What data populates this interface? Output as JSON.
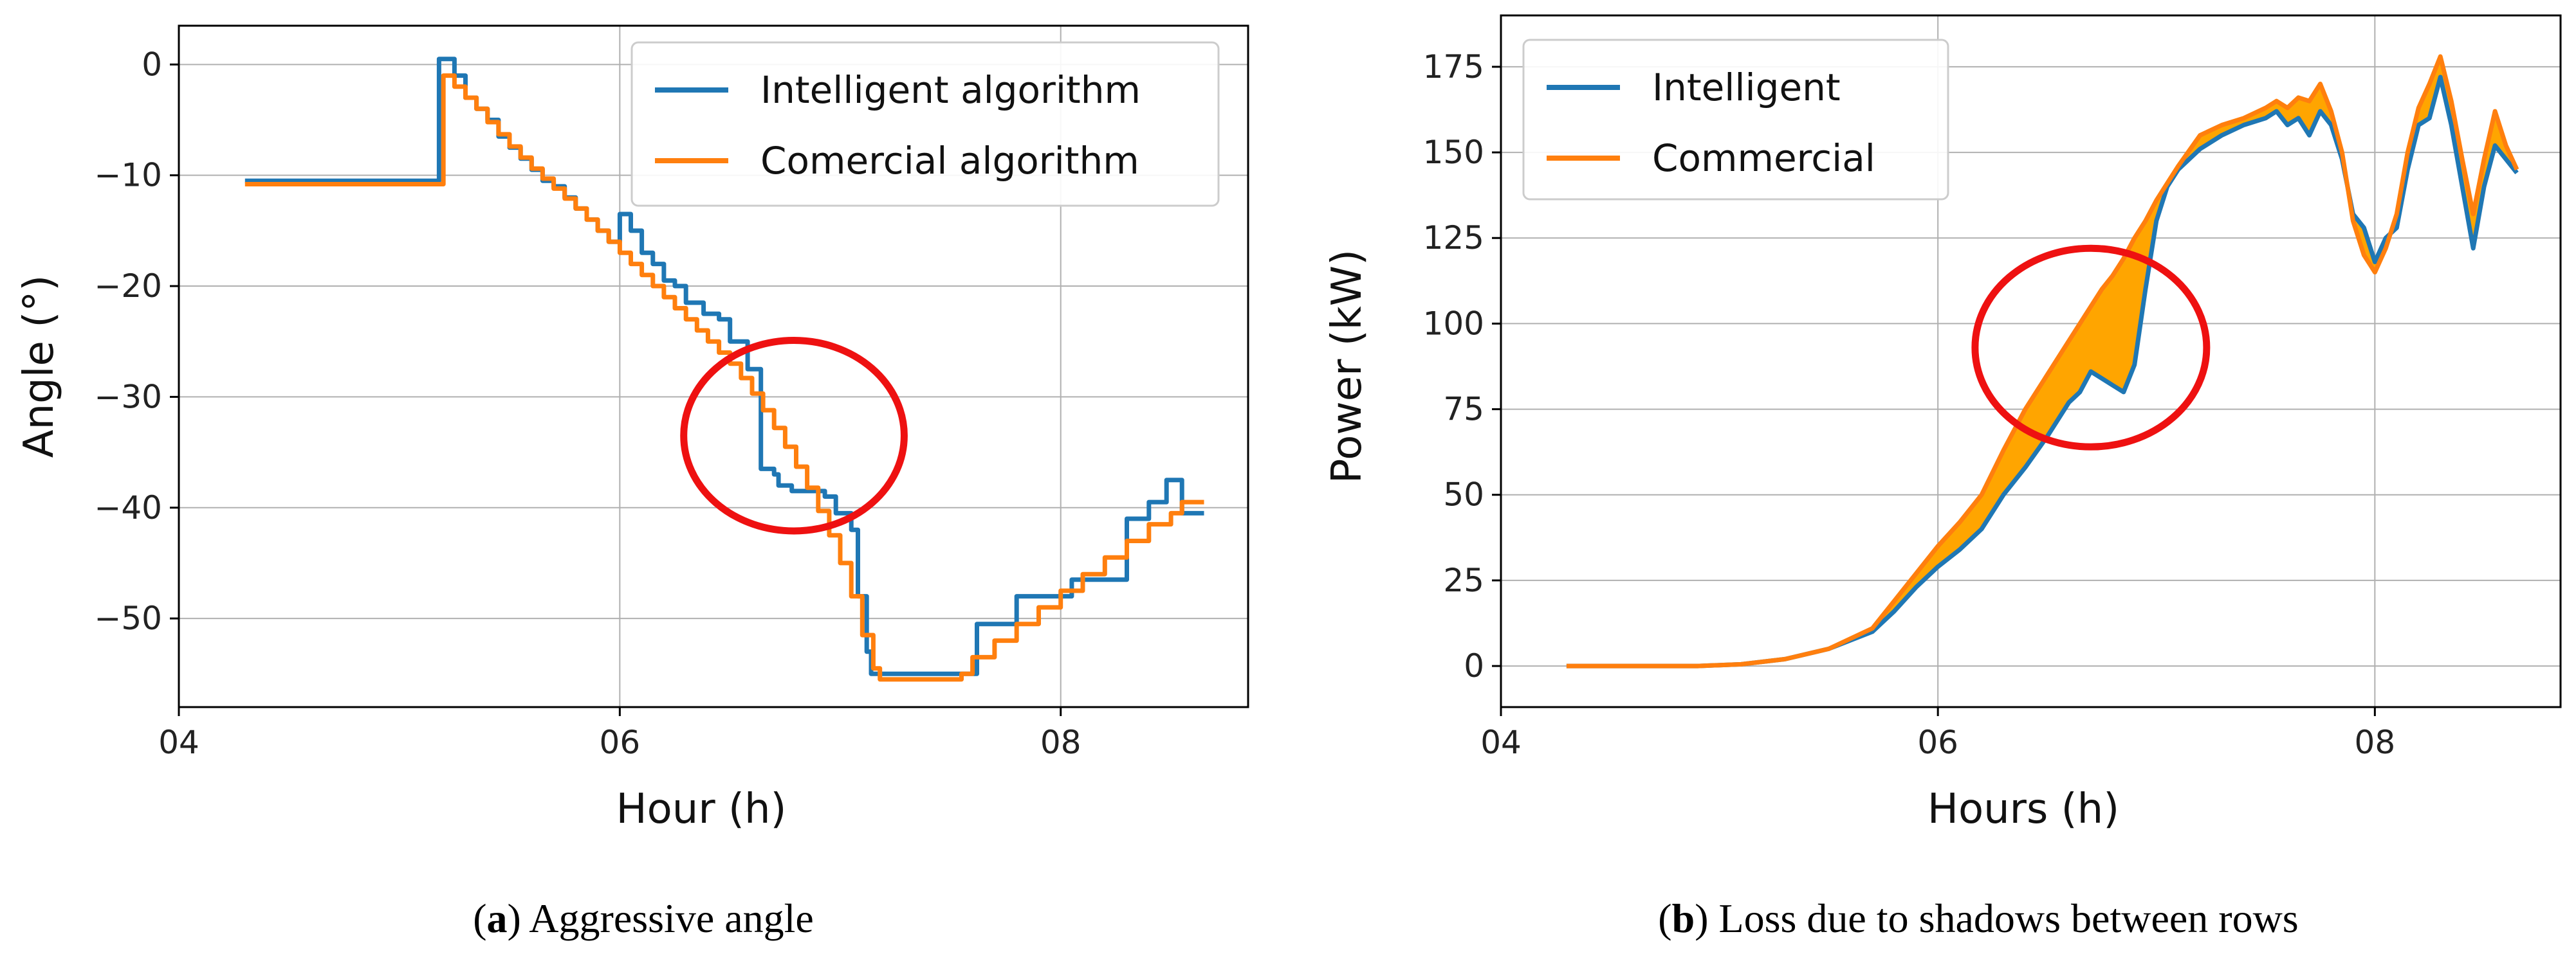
{
  "chart_data": [
    {
      "type": "line",
      "panel_letter": "a",
      "caption": "Aggressive angle",
      "xlabel": "Hour (h)",
      "ylabel": "Angle (°)",
      "xlim": [
        4.0,
        8.85
      ],
      "ylim": [
        -58,
        3.5
      ],
      "xticks": [
        4,
        6,
        8
      ],
      "xtick_labels": [
        "04",
        "06",
        "08"
      ],
      "yticks": [
        0,
        -10,
        -20,
        -30,
        -40,
        -50
      ],
      "ytick_labels": [
        "0",
        "−10",
        "−20",
        "−30",
        "−40",
        "−50"
      ],
      "grid": true,
      "legend_position": "top-right",
      "series": [
        {
          "name": "Intelligent algorithm",
          "color": "#1f77b4",
          "step": true,
          "x": [
            4.3,
            5.18,
            5.18,
            5.25,
            5.3,
            5.35,
            5.4,
            5.45,
            5.5,
            5.55,
            5.6,
            5.65,
            5.7,
            5.75,
            5.8,
            5.85,
            5.9,
            5.95,
            6.0,
            6.05,
            6.1,
            6.15,
            6.2,
            6.25,
            6.3,
            6.38,
            6.45,
            6.5,
            6.58,
            6.64,
            6.7,
            6.72,
            6.78,
            6.93,
            6.98,
            7.05,
            7.08,
            7.12,
            7.14,
            7.18,
            7.55,
            7.62,
            7.75,
            7.8,
            7.88,
            7.95,
            8.05,
            8.2,
            8.3,
            8.35,
            8.4,
            8.48,
            8.55,
            8.65
          ],
          "y": [
            -10.5,
            -10.5,
            0.5,
            -1,
            -3,
            -4,
            -5,
            -6.5,
            -7.5,
            -8.5,
            -9.5,
            -10.5,
            -11,
            -12,
            -13,
            -14,
            -15,
            -16,
            -13.5,
            -15,
            -17,
            -18,
            -19.5,
            -20,
            -21.5,
            -22.5,
            -23,
            -25,
            -27.5,
            -36.5,
            -37,
            -38,
            -38.5,
            -39,
            -40.5,
            -42,
            -48,
            -53,
            -55,
            -55,
            -55,
            -50.5,
            -50.5,
            -48,
            -48,
            -48,
            -46.5,
            -46.5,
            -41,
            -41,
            -39.5,
            -37.5,
            -40.5,
            -40.5
          ]
        },
        {
          "name": "Comercial algorithm",
          "color": "#ff7f0e",
          "step": true,
          "x": [
            4.3,
            5.18,
            5.2,
            5.25,
            5.3,
            5.35,
            5.4,
            5.45,
            5.5,
            5.55,
            5.6,
            5.65,
            5.7,
            5.75,
            5.8,
            5.85,
            5.9,
            5.95,
            6.0,
            6.05,
            6.1,
            6.15,
            6.2,
            6.25,
            6.3,
            6.35,
            6.4,
            6.45,
            6.5,
            6.55,
            6.6,
            6.65,
            6.7,
            6.75,
            6.8,
            6.85,
            6.9,
            6.95,
            7.0,
            7.05,
            7.1,
            7.15,
            7.18,
            7.55,
            7.6,
            7.7,
            7.8,
            7.9,
            8.0,
            8.1,
            8.2,
            8.3,
            8.4,
            8.5,
            8.55,
            8.65
          ],
          "y": [
            -10.8,
            -10.8,
            -1,
            -2,
            -3,
            -4,
            -5.2,
            -6.3,
            -7.4,
            -8.4,
            -9.4,
            -10.3,
            -11.2,
            -12.1,
            -13,
            -14,
            -15,
            -16,
            -17,
            -18,
            -19,
            -20,
            -21,
            -22,
            -23,
            -24,
            -25,
            -26,
            -27,
            -28.3,
            -29.7,
            -31.2,
            -32.8,
            -34.5,
            -36.3,
            -38.2,
            -40.3,
            -42.5,
            -45,
            -48,
            -51.5,
            -54.5,
            -55.5,
            -55,
            -53.5,
            -52,
            -50.5,
            -49,
            -47.5,
            -46,
            -44.5,
            -43,
            -41.5,
            -40.5,
            -39.5,
            -39.5
          ]
        }
      ],
      "annotations": [
        {
          "shape": "ellipse",
          "color": "#ee1111",
          "cx": 6.79,
          "cy": -33.5,
          "rx": 0.5,
          "ry": 8.6
        }
      ]
    },
    {
      "type": "line",
      "panel_letter": "b",
      "caption": "Loss due to shadows between rows",
      "xlabel": "Hours (h)",
      "ylabel": "Power (kW)",
      "xlim": [
        4.0,
        8.85
      ],
      "ylim": [
        -12,
        190
      ],
      "xticks": [
        4,
        6,
        8
      ],
      "xtick_labels": [
        "04",
        "06",
        "08"
      ],
      "yticks": [
        0,
        25,
        50,
        75,
        100,
        125,
        150,
        175
      ],
      "ytick_labels": [
        "0",
        "25",
        "50",
        "75",
        "100",
        "125",
        "150",
        "175"
      ],
      "grid": true,
      "legend_position": "top-left",
      "fill_between": {
        "color": "#ffa500",
        "series_upper": 1,
        "series_lower": 0
      },
      "series": [
        {
          "name": "Intelligent",
          "color": "#1f77b4",
          "x": [
            4.3,
            4.6,
            4.9,
            5.1,
            5.3,
            5.5,
            5.7,
            5.8,
            5.9,
            6.0,
            6.1,
            6.2,
            6.3,
            6.4,
            6.5,
            6.6,
            6.65,
            6.7,
            6.75,
            6.8,
            6.85,
            6.9,
            6.95,
            7.0,
            7.05,
            7.1,
            7.2,
            7.3,
            7.4,
            7.5,
            7.55,
            7.6,
            7.65,
            7.7,
            7.75,
            7.8,
            7.85,
            7.9,
            7.95,
            8.0,
            8.05,
            8.1,
            8.15,
            8.2,
            8.25,
            8.3,
            8.35,
            8.4,
            8.45,
            8.5,
            8.55,
            8.6,
            8.65
          ],
          "y": [
            0,
            0,
            0,
            0.5,
            2,
            5,
            10,
            16,
            23,
            29,
            34,
            40,
            50,
            58,
            67,
            77,
            80,
            86,
            84,
            82,
            80,
            88,
            110,
            130,
            140,
            145,
            151,
            155,
            158,
            160,
            162,
            158,
            160,
            155,
            162,
            158,
            148,
            132,
            128,
            118,
            125,
            128,
            145,
            158,
            160,
            172,
            158,
            140,
            122,
            140,
            152,
            148,
            144
          ]
        },
        {
          "name": "Commercial",
          "color": "#ff7f0e",
          "x": [
            4.3,
            4.6,
            4.9,
            5.1,
            5.3,
            5.5,
            5.7,
            5.8,
            5.9,
            6.0,
            6.1,
            6.2,
            6.3,
            6.4,
            6.5,
            6.6,
            6.65,
            6.7,
            6.75,
            6.8,
            6.85,
            6.9,
            6.95,
            7.0,
            7.05,
            7.1,
            7.2,
            7.3,
            7.4,
            7.5,
            7.55,
            7.6,
            7.65,
            7.7,
            7.75,
            7.8,
            7.85,
            7.9,
            7.95,
            8.0,
            8.05,
            8.1,
            8.15,
            8.2,
            8.25,
            8.3,
            8.35,
            8.4,
            8.45,
            8.5,
            8.55,
            8.6,
            8.65
          ],
          "y": [
            0,
            0,
            0,
            0.5,
            2,
            5,
            11,
            19,
            27,
            35,
            42,
            50,
            63,
            75,
            85,
            95,
            100,
            105,
            110,
            114,
            119,
            125,
            130,
            136,
            141,
            146,
            155,
            158,
            160,
            163,
            165,
            163,
            166,
            165,
            170,
            162,
            150,
            130,
            120,
            115,
            122,
            132,
            150,
            163,
            170,
            178,
            165,
            148,
            132,
            148,
            162,
            152,
            145
          ]
        }
      ],
      "annotations": [
        {
          "shape": "ellipse",
          "color": "#ee1111",
          "cx": 6.7,
          "cy": 93,
          "rx": 0.53,
          "ry": 29
        }
      ]
    }
  ]
}
